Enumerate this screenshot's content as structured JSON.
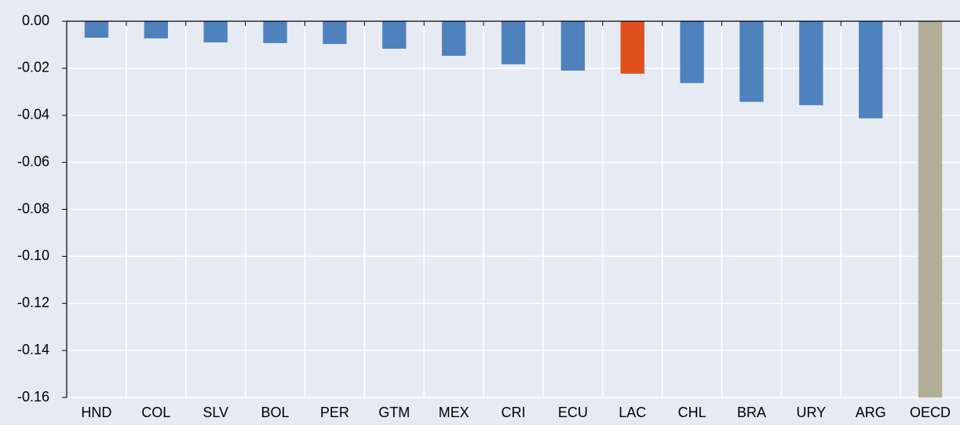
{
  "chart_data": {
    "type": "bar",
    "categories": [
      "HND",
      "COL",
      "SLV",
      "BOL",
      "PER",
      "GTM",
      "MEX",
      "CRI",
      "ECU",
      "LAC",
      "CHL",
      "BRA",
      "URY",
      "ARG",
      "OECD"
    ],
    "values": [
      -0.007,
      -0.0073,
      -0.009,
      -0.0093,
      -0.0097,
      -0.0117,
      -0.0147,
      -0.0183,
      -0.021,
      -0.0223,
      -0.0263,
      -0.0343,
      -0.0357,
      -0.0413,
      -0.16
    ],
    "colors": [
      "#4f81bd",
      "#4f81bd",
      "#4f81bd",
      "#4f81bd",
      "#4f81bd",
      "#4f81bd",
      "#4f81bd",
      "#4f81bd",
      "#4f81bd",
      "#e0501e",
      "#4f81bd",
      "#4f81bd",
      "#4f81bd",
      "#4f81bd",
      "#b3ae96"
    ],
    "ylim": [
      -0.16,
      0
    ],
    "yticks": [
      {
        "value": 0,
        "label": "0.00"
      },
      {
        "value": -0.02,
        "label": "-0.02"
      },
      {
        "value": -0.04,
        "label": "-0.04"
      },
      {
        "value": -0.06,
        "label": "-0.06"
      },
      {
        "value": -0.08,
        "label": "-0.08"
      },
      {
        "value": -0.1,
        "label": "-0.10"
      },
      {
        "value": -0.12,
        "label": "-0.12"
      },
      {
        "value": -0.14,
        "label": "-0.14"
      },
      {
        "value": -0.16,
        "label": "-0.16"
      }
    ],
    "grid": true
  }
}
